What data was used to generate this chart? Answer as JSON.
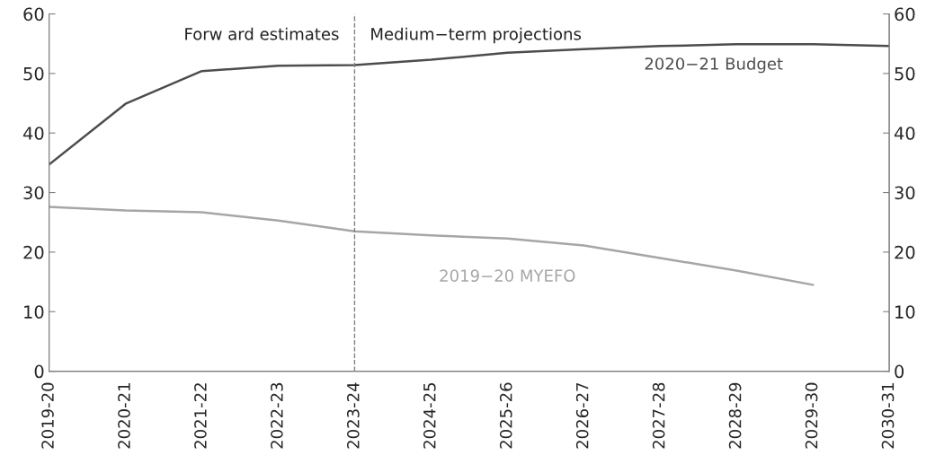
{
  "chart_data": {
    "type": "line",
    "categories": [
      "2019-20",
      "2020-21",
      "2021-22",
      "2022-23",
      "2023-24",
      "2024-25",
      "2025-26",
      "2026-27",
      "2027-28",
      "2028-29",
      "2029-30",
      "2030-31"
    ],
    "series": [
      {
        "name": "2020−21 Budget",
        "color": "#4d4d4d",
        "values": [
          34.7,
          44.9,
          50.4,
          51.3,
          51.4,
          52.3,
          53.5,
          54.1,
          54.6,
          54.9,
          54.9,
          54.6
        ]
      },
      {
        "name": "2019−20 MYEFO",
        "color": "#a6a6a6",
        "values": [
          27.6,
          27.0,
          26.7,
          25.3,
          23.5,
          22.8,
          22.3,
          21.1,
          19.0,
          16.9,
          14.5,
          null
        ]
      }
    ],
    "ylim": [
      0,
      60
    ],
    "yticks": [
      0,
      10,
      20,
      30,
      40,
      50,
      60
    ],
    "y2lim": [
      0,
      60
    ],
    "y2ticks": [
      0,
      10,
      20,
      30,
      40,
      50,
      60
    ],
    "ref_lines": [
      {
        "axis": "x",
        "value": "2023-24",
        "label": null,
        "color": "#808080",
        "line_style": "dashed"
      }
    ],
    "annotations": [
      "Forw ard estimates",
      "Medium−term projections"
    ],
    "grid": false,
    "legend": false
  }
}
